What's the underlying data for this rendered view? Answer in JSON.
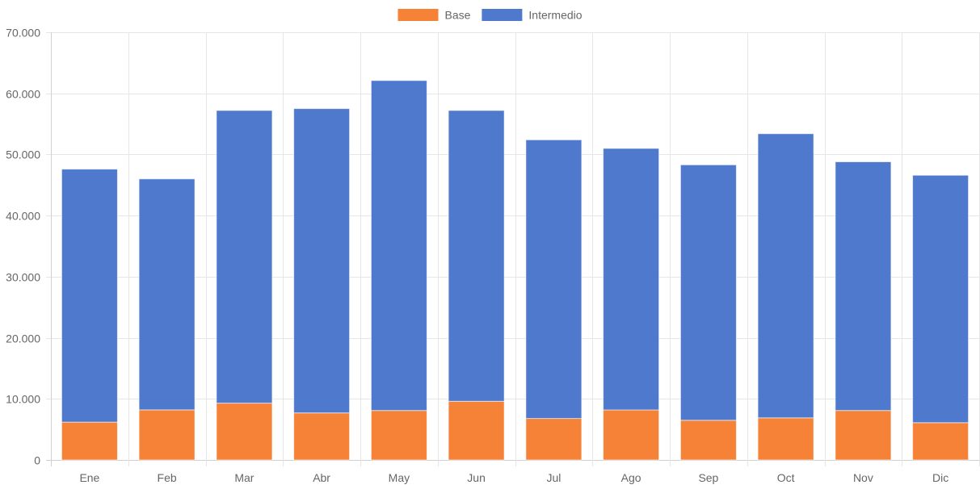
{
  "chart_data": {
    "type": "bar",
    "stacked": true,
    "categories": [
      "Ene",
      "Feb",
      "Mar",
      "Abr",
      "May",
      "Jun",
      "Jul",
      "Ago",
      "Sep",
      "Oct",
      "Nov",
      "Dic"
    ],
    "series": [
      {
        "name": "Base",
        "color": "#f58236",
        "values": [
          6200,
          8200,
          9300,
          7700,
          8100,
          9600,
          6800,
          8200,
          6500,
          6900,
          8100,
          6100
        ]
      },
      {
        "name": "Intermedio",
        "color": "#4e79cc",
        "values": [
          41400,
          37800,
          47900,
          49800,
          54000,
          47600,
          45600,
          42800,
          41800,
          46500,
          40700,
          40500
        ]
      }
    ],
    "ylim": [
      0,
      70000
    ],
    "yticks": [
      0,
      10000,
      20000,
      30000,
      40000,
      50000,
      60000,
      70000
    ],
    "ytick_labels": [
      "0",
      "10.000",
      "20.000",
      "30.000",
      "40.000",
      "50.000",
      "60.000",
      "70.000"
    ],
    "grid": true,
    "legend_position": "top-center"
  }
}
